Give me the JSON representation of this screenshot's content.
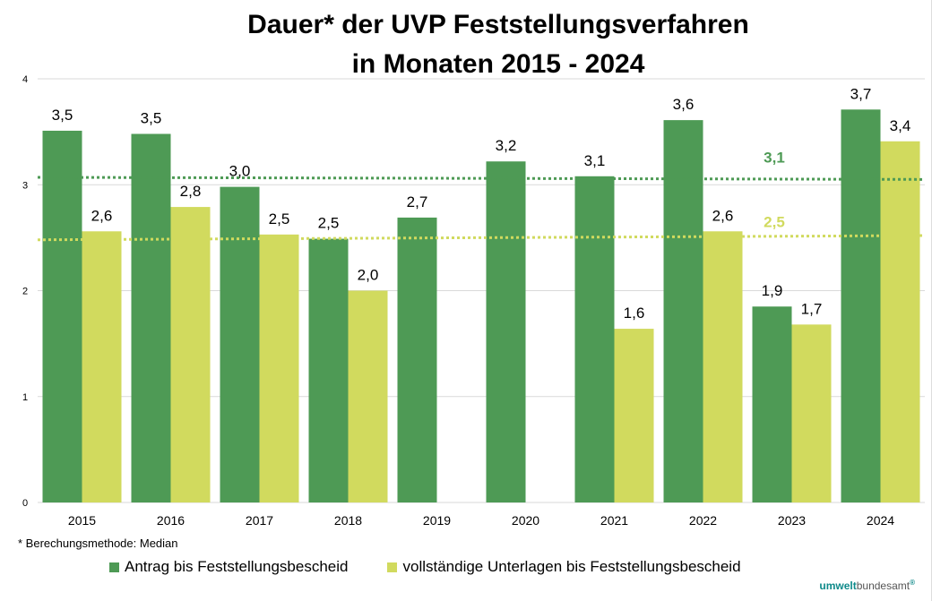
{
  "chart_data": {
    "type": "bar",
    "title_lines": [
      "Dauer* der UVP Feststellungsverfahren",
      "in Monaten 2015 - 2024"
    ],
    "categories": [
      "2015",
      "2016",
      "2017",
      "2018",
      "2019",
      "2020",
      "2021",
      "2022",
      "2023",
      "2024"
    ],
    "ylim": [
      0,
      4
    ],
    "yticks": [
      "0",
      "1",
      "2",
      "3",
      "4"
    ],
    "grid": true,
    "legend_position": "bottom",
    "series": [
      {
        "name": "Antrag bis Feststellungsbescheid",
        "color": "#4e9a55",
        "values": [
          3.51,
          3.48,
          2.98,
          2.49,
          2.69,
          3.22,
          3.08,
          3.61,
          1.85,
          3.71
        ],
        "labels": [
          "3,5",
          "3,5",
          "3,0",
          "2,5",
          "2,7",
          "3,2",
          "3,1",
          "3,6",
          "1,9",
          "3,7"
        ]
      },
      {
        "name": "vollständige Unterlagen bis Feststellungsbescheid",
        "color": "#d1da5e",
        "values": [
          2.56,
          2.79,
          2.53,
          2.0,
          null,
          null,
          1.64,
          2.56,
          1.68,
          3.41
        ],
        "labels": [
          "2,6",
          "2,8",
          "2,5",
          "2,0",
          "",
          "",
          "1,6",
          "2,6",
          "1,7",
          "3,4"
        ]
      }
    ],
    "median_lines": [
      {
        "series": 0,
        "value": 3.1,
        "label": "3,1",
        "start": 3.07,
        "end": 3.05
      },
      {
        "series": 1,
        "value": 2.5,
        "label": "2,5",
        "start": 2.48,
        "end": 2.52
      }
    ],
    "footnote": "* Berechungsmethode: Median"
  },
  "logo": {
    "part1": "umwelt",
    "part2": "bundesamt",
    "mark": "®"
  }
}
